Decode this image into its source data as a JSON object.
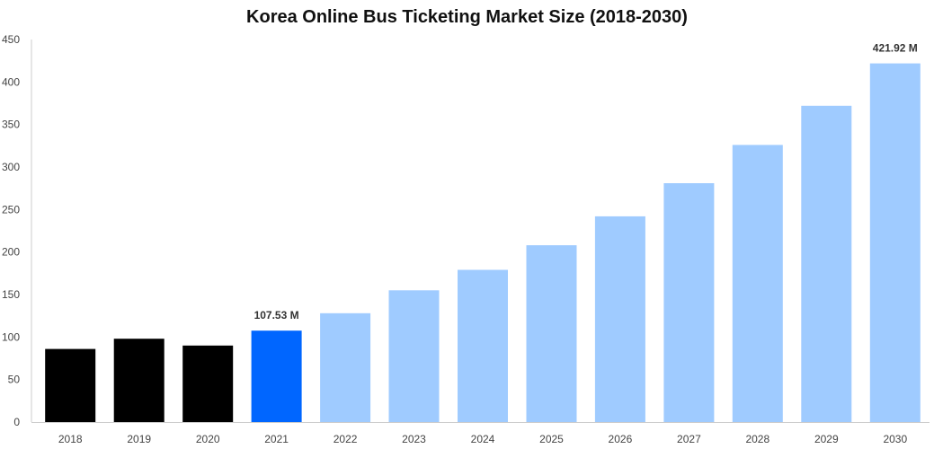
{
  "chart_data": {
    "type": "bar",
    "title": "Korea Online Bus Ticketing Market Size (2018-2030)",
    "xlabel": "",
    "ylabel": "",
    "categories": [
      "2018",
      "2019",
      "2020",
      "2021",
      "2022",
      "2023",
      "2024",
      "2025",
      "2026",
      "2027",
      "2028",
      "2029",
      "2030"
    ],
    "values": [
      86,
      98,
      90,
      107.53,
      128,
      155,
      179,
      208,
      242,
      281,
      326,
      372,
      421.92
    ],
    "bar_colors": [
      "#000000",
      "#000000",
      "#000000",
      "#0066ff",
      "#9fcbff",
      "#9fcbff",
      "#9fcbff",
      "#9fcbff",
      "#9fcbff",
      "#9fcbff",
      "#9fcbff",
      "#9fcbff",
      "#9fcbff"
    ],
    "data_labels": {
      "3": "107.53 M",
      "12": "421.92 M"
    },
    "ylim": [
      0,
      450
    ],
    "yticks": [
      0,
      50,
      100,
      150,
      200,
      250,
      300,
      350,
      400,
      450
    ],
    "grid": false,
    "legend": "none"
  }
}
